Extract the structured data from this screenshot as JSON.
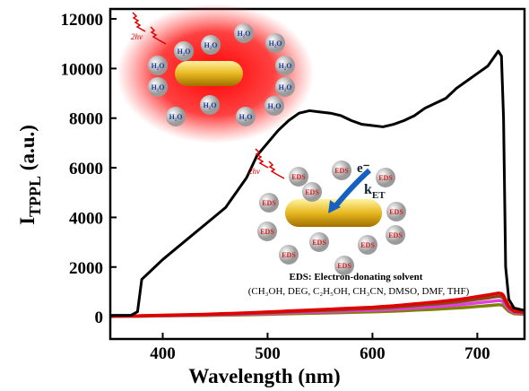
{
  "chart_data": {
    "type": "line",
    "xlabel": "Wavelength (nm)",
    "ylabel": [
      "I",
      "TPPL",
      " (a.u.)"
    ],
    "x": [
      350,
      370,
      376,
      380,
      390,
      400,
      420,
      440,
      460,
      480,
      490,
      500,
      510,
      520,
      530,
      540,
      550,
      560,
      570,
      580,
      590,
      600,
      610,
      620,
      630,
      640,
      650,
      660,
      670,
      680,
      690,
      700,
      710,
      715,
      720,
      723,
      725,
      727,
      730,
      735,
      745
    ],
    "series": [
      {
        "color": "#000000",
        "values": [
          50,
          60,
          200,
          1500,
          1900,
          2300,
          3000,
          3700,
          4400,
          5600,
          6500,
          7000,
          7500,
          7900,
          8200,
          8300,
          8250,
          8200,
          8100,
          7900,
          7750,
          7700,
          7650,
          7750,
          7900,
          8100,
          8400,
          8600,
          8800,
          9200,
          9500,
          9800,
          10100,
          10400,
          10700,
          10500,
          8000,
          2000,
          700,
          350,
          250
        ]
      },
      {
        "color": "#e00000",
        "values": [
          19,
          29,
          29,
          38,
          48,
          57,
          76,
          95,
          124,
          152,
          171,
          190,
          209,
          228,
          247,
          266,
          285,
          304,
          323,
          342,
          361,
          380,
          409,
          437,
          475,
          513,
          551,
          589,
          637,
          684,
          741,
          808,
          874,
          912,
          950,
          931,
          855,
          665,
          428,
          238,
          190
        ]
      },
      {
        "color": "#8b4513",
        "values": [
          16,
          25,
          25,
          33,
          41,
          49,
          66,
          82,
          107,
          131,
          148,
          164,
          180,
          197,
          213,
          230,
          246,
          262,
          279,
          295,
          312,
          328,
          353,
          377,
          410,
          443,
          476,
          508,
          549,
          590,
          640,
          697,
          754,
          787,
          820,
          804,
          738,
          574,
          369,
          205,
          164
        ]
      },
      {
        "color": "#e040e0",
        "values": [
          13,
          20,
          20,
          26,
          33,
          39,
          52,
          65,
          85,
          104,
          117,
          130,
          143,
          156,
          169,
          182,
          195,
          208,
          221,
          234,
          247,
          260,
          280,
          299,
          325,
          351,
          377,
          403,
          436,
          468,
          507,
          553,
          598,
          624,
          650,
          637,
          585,
          455,
          293,
          163,
          130
        ]
      },
      {
        "color": "#808000",
        "values": [
          10,
          14,
          14,
          19,
          24,
          29,
          38,
          48,
          62,
          77,
          86,
          96,
          106,
          115,
          125,
          134,
          144,
          154,
          163,
          173,
          182,
          192,
          206,
          221,
          240,
          259,
          278,
          298,
          322,
          346,
          374,
          408,
          442,
          461,
          480,
          470,
          432,
          336,
          216,
          120,
          96
        ]
      }
    ],
    "xlim": [
      350,
      745
    ],
    "xticks": [
      400,
      500,
      600,
      700
    ],
    "ylim": [
      -900,
      12400
    ],
    "yticks": [
      0,
      2000,
      4000,
      6000,
      8000,
      10000,
      12000
    ],
    "inset_water": {
      "photon": "2hν",
      "molecule": "H₂O"
    },
    "inset_eds": {
      "photon": "2hν",
      "molecule": "EDS",
      "electron": "e⁻",
      "rate": [
        "k",
        "ET"
      ],
      "caption": "EDS: Electron-donating  solvent",
      "solvents": "(CH₃OH, DEG, C₂H₅OH, CH₃CN, DMSO, DMF, THF)"
    }
  }
}
